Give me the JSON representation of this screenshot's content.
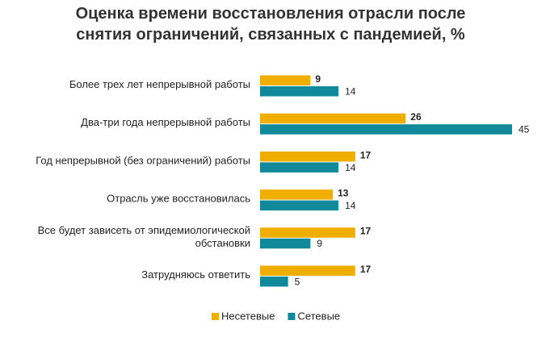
{
  "chart_data": {
    "type": "bar",
    "orientation": "horizontal",
    "title": "Оценка времени восстановления отрасли после снятия ограничений, связанных с пандемией, %",
    "categories": [
      "Более трех лет непрерывной работы",
      "Два-три года непрерывной работы",
      "Год непрерывной (без ограничений) работы",
      "Отрасль уже восстановилась",
      "Все будет зависеть от эпидемиологической обстановки",
      "Затрудняюсь ответить"
    ],
    "series": [
      {
        "name": "Несетевые",
        "color": "#f0ae00",
        "values": [
          9,
          26,
          17,
          13,
          17,
          17
        ]
      },
      {
        "name": "Сетевые",
        "color": "#10899a",
        "values": [
          14,
          45,
          14,
          14,
          9,
          5
        ]
      }
    ],
    "legend": "bottom"
  }
}
